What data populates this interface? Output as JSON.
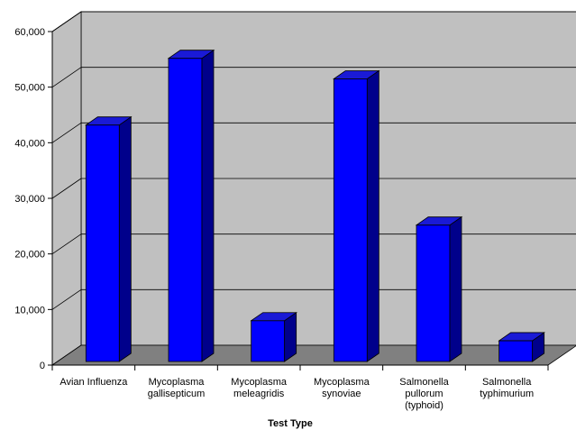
{
  "chart_data": {
    "type": "bar",
    "title": "",
    "xlabel": "Test Type",
    "ylabel": "",
    "categories": [
      [
        "Avian Influenza"
      ],
      [
        "Mycoplasma",
        "gallisepticum"
      ],
      [
        "Mycoplasma",
        "meleagridis"
      ],
      [
        "Mycoplasma",
        "synoviae"
      ],
      [
        "Salmonella",
        "pullorum",
        "(typhoid)"
      ],
      [
        "Salmonella",
        "typhimurium"
      ]
    ],
    "values": [
      44000,
      56000,
      8800,
      52300,
      26000,
      5200
    ],
    "ylim": [
      0,
      60000
    ],
    "yticks": [
      0,
      10000,
      20000,
      30000,
      40000,
      50000,
      60000
    ],
    "ytick_labels": [
      "0",
      "10,000",
      "20,000",
      "30,000",
      "40,000",
      "50,000",
      "60,000"
    ],
    "grid": true,
    "style": "3d",
    "colors": {
      "bar_front": "#0000ff",
      "bar_side": "#00008b",
      "bar_top": "#1a1ad6",
      "wall": "#c0c0c0",
      "floor": "#808080",
      "grid": "#000000"
    }
  }
}
